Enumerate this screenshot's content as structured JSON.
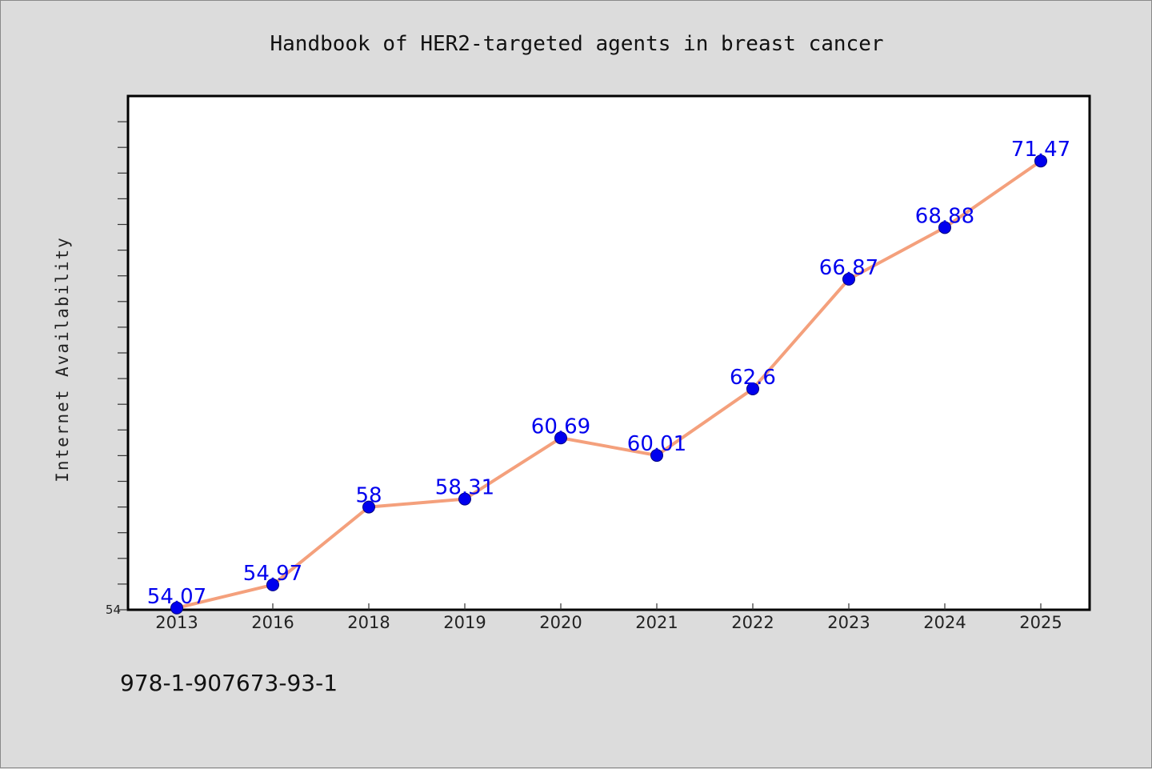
{
  "chart_data": {
    "type": "line",
    "title": "Handbook of HER2-targeted agents in breast cancer",
    "xlabel": "",
    "ylabel": "Internet Availability",
    "categories": [
      "2013",
      "2016",
      "2018",
      "2019",
      "2020",
      "2021",
      "2022",
      "2023",
      "2024",
      "2025"
    ],
    "series": [
      {
        "values": [
          54.07,
          54.97,
          58,
          58.31,
          60.69,
          60.01,
          62.6,
          66.87,
          68.88,
          71.47
        ],
        "labels": [
          "54.07",
          "54.97",
          "58",
          "58.31",
          "60.69",
          "60.01",
          "62.6",
          "66.87",
          "68.88",
          "71.47"
        ]
      }
    ],
    "ylim": [
      54,
      74
    ],
    "ytick_labels": [
      "54"
    ],
    "grid": false,
    "line_color": "#f4a07c",
    "marker_color": "#0000ee",
    "label_color": "#0000ee"
  },
  "footer": {
    "isbn": "978-1-907673-93-1"
  }
}
